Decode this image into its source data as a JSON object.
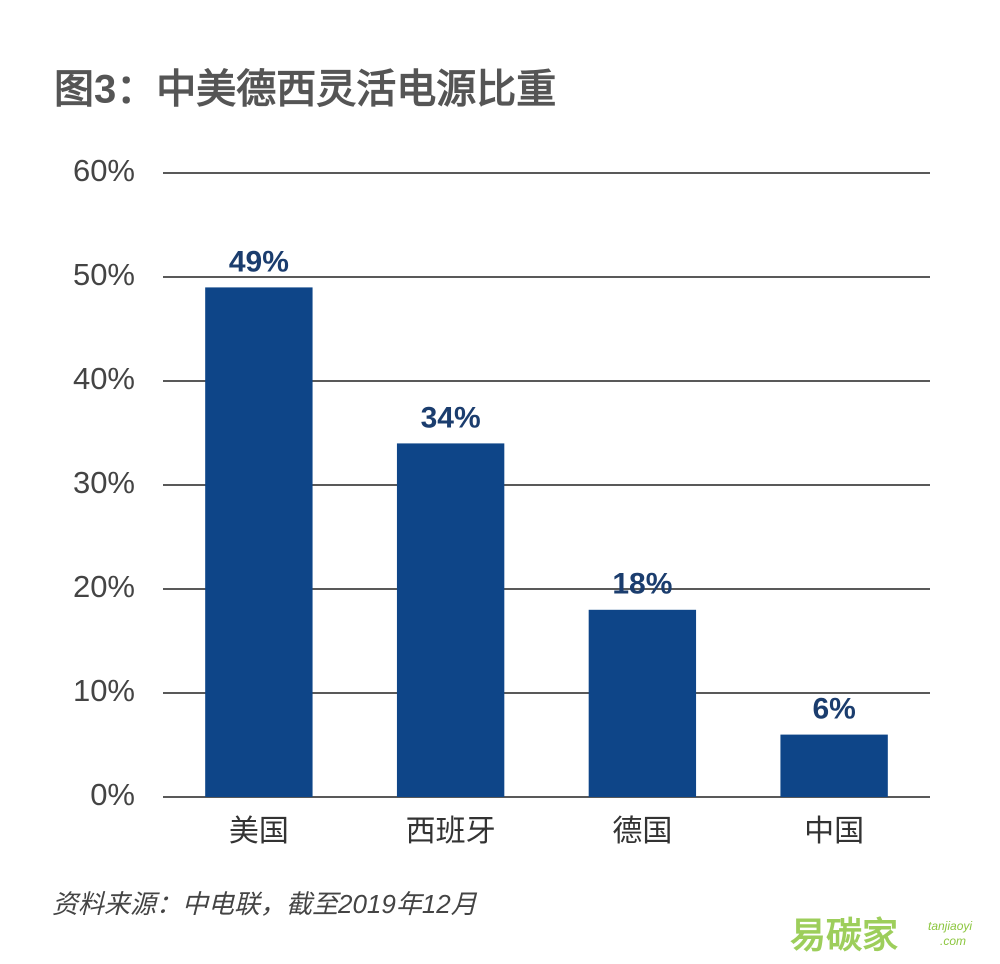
{
  "chart_data": {
    "type": "bar",
    "title": "图3：中美德西灵活电源比重",
    "categories": [
      "美国",
      "西班牙",
      "德国",
      "中国"
    ],
    "values": [
      49,
      34,
      18,
      6
    ],
    "value_labels": [
      "49%",
      "34%",
      "18%",
      "6%"
    ],
    "color": "#0e4588",
    "ylim": [
      0,
      60
    ],
    "yticks": [
      {
        "value": 0,
        "label": "0%"
      },
      {
        "value": 10,
        "label": "10%"
      },
      {
        "value": 20,
        "label": "20%"
      },
      {
        "value": 30,
        "label": "30%"
      },
      {
        "value": 40,
        "label": "40%"
      },
      {
        "value": 50,
        "label": "50%"
      },
      {
        "value": 60,
        "label": "60%"
      }
    ],
    "grid": true,
    "source": "资料来源：中电联，截至2019年12月",
    "watermark": [
      "易碳家",
      "tanjiaoyi",
      ".com"
    ]
  }
}
